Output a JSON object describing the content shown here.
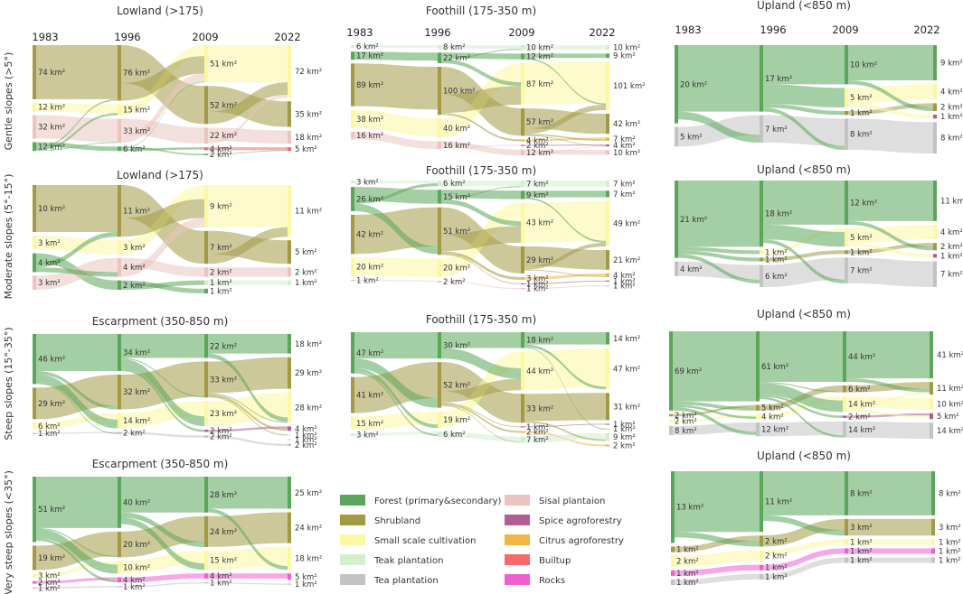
{
  "colors": {
    "forest": "#5aa65a",
    "shrub": "#a39a45",
    "small": "#fbf7a3",
    "teak": "#d2efcf",
    "tea": "#c3c3c3",
    "sisal": "#eac4bd",
    "spice": "#b35e92",
    "citrus": "#f2b646",
    "builtup": "#f36b6b",
    "rocks": "#f05ed1"
  },
  "row_labels": [
    "Gentle slopes (>5°)",
    "Moderate slopes (5°-15°)",
    "Steep slopes (15°-35°)",
    "Very steep slopes (<35°)"
  ],
  "years": [
    "1983",
    "1996",
    "2009",
    "2022"
  ],
  "legend": [
    {
      "key": "forest",
      "label": "Forest (primary&secondary)"
    },
    {
      "key": "shrub",
      "label": "Shrubland"
    },
    {
      "key": "small",
      "label": "Small scale cultivation"
    },
    {
      "key": "teak",
      "label": "Teak plantation"
    },
    {
      "key": "tea",
      "label": "Tea plantation"
    },
    {
      "key": "sisal",
      "label": "Sisal plantaion"
    },
    {
      "key": "spice",
      "label": "Spice agroforestry"
    },
    {
      "key": "citrus",
      "label": "Citrus agroforestry"
    },
    {
      "key": "builtup",
      "label": "Builtup"
    },
    {
      "key": "rocks",
      "label": "Rocks"
    }
  ],
  "chart_data": [
    {
      "type": "sankey",
      "id": "p1",
      "title": "Lowland (>175)",
      "show_years": true,
      "unit": "km²",
      "columns": [
        [
          {
            "c": "shrub",
            "v": 74
          },
          {
            "c": "small",
            "v": 12
          },
          {
            "c": "sisal",
            "v": 32
          },
          {
            "c": "forest",
            "v": 12
          }
        ],
        [
          {
            "c": "shrub",
            "v": 76
          },
          {
            "c": "small",
            "v": 15
          },
          {
            "c": "sisal",
            "v": 33
          },
          {
            "c": "forest",
            "v": 6
          }
        ],
        [
          {
            "c": "small",
            "v": 51
          },
          {
            "c": "shrub",
            "v": 52
          },
          {
            "c": "sisal",
            "v": 22
          },
          {
            "c": "builtup",
            "v": 4
          },
          {
            "c": "forest",
            "v": 2
          }
        ],
        [
          {
            "c": "small",
            "v": 72
          },
          {
            "c": "shrub",
            "v": 35
          },
          {
            "c": "sisal",
            "v": 18
          },
          {
            "c": "builtup",
            "v": 5
          }
        ]
      ]
    },
    {
      "type": "sankey",
      "id": "p2",
      "title": "Foothill (175-350 m)",
      "show_years": true,
      "unit": "km²",
      "columns": [
        [
          {
            "c": "teak",
            "v": 6
          },
          {
            "c": "forest",
            "v": 17
          },
          {
            "c": "shrub",
            "v": 89
          },
          {
            "c": "small",
            "v": 38
          },
          {
            "c": "sisal",
            "v": 16
          }
        ],
        [
          {
            "c": "teak",
            "v": 8
          },
          {
            "c": "forest",
            "v": 22
          },
          {
            "c": "shrub",
            "v": 100
          },
          {
            "c": "small",
            "v": 40
          },
          {
            "c": "sisal",
            "v": 16
          }
        ],
        [
          {
            "c": "teak",
            "v": 10
          },
          {
            "c": "forest",
            "v": 12
          },
          {
            "c": "small",
            "v": 87
          },
          {
            "c": "shrub",
            "v": 57
          },
          {
            "c": "citrus",
            "v": 4
          },
          {
            "c": "spice",
            "v": 2
          },
          {
            "c": "sisal",
            "v": 12
          }
        ],
        [
          {
            "c": "teak",
            "v": 10
          },
          {
            "c": "forest",
            "v": 9
          },
          {
            "c": "small",
            "v": 101
          },
          {
            "c": "shrub",
            "v": 42
          },
          {
            "c": "citrus",
            "v": 7
          },
          {
            "c": "spice",
            "v": 4
          },
          {
            "c": "sisal",
            "v": 10
          }
        ]
      ]
    },
    {
      "type": "sankey",
      "id": "p3",
      "title": "Upland (<850 m)",
      "show_years": true,
      "unit": "km²",
      "columns": [
        [
          {
            "c": "forest",
            "v": 20
          },
          {
            "c": "tea",
            "v": 5
          }
        ],
        [
          {
            "c": "forest",
            "v": 17
          },
          {
            "c": "tea",
            "v": 7
          }
        ],
        [
          {
            "c": "forest",
            "v": 10
          },
          {
            "c": "small",
            "v": 5
          },
          {
            "c": "shrub",
            "v": 1
          },
          {
            "c": "tea",
            "v": 8
          }
        ],
        [
          {
            "c": "forest",
            "v": 9
          },
          {
            "c": "small",
            "v": 4
          },
          {
            "c": "shrub",
            "v": 2
          },
          {
            "c": "spice",
            "v": 1
          },
          {
            "c": "tea",
            "v": 8
          }
        ]
      ]
    },
    {
      "type": "sankey",
      "id": "p4",
      "title": "Lowland (>175)",
      "show_years": false,
      "unit": "km²",
      "columns": [
        [
          {
            "c": "shrub",
            "v": 10
          },
          {
            "c": "small",
            "v": 3
          },
          {
            "c": "forest",
            "v": 4
          },
          {
            "c": "sisal",
            "v": 3
          }
        ],
        [
          {
            "c": "shrub",
            "v": 11
          },
          {
            "c": "small",
            "v": 3
          },
          {
            "c": "sisal",
            "v": 4
          },
          {
            "c": "forest",
            "v": 2
          }
        ],
        [
          {
            "c": "small",
            "v": 9
          },
          {
            "c": "shrub",
            "v": 7
          },
          {
            "c": "sisal",
            "v": 2
          },
          {
            "c": "teak",
            "v": 1
          },
          {
            "c": "forest",
            "v": 1
          }
        ],
        [
          {
            "c": "small",
            "v": 11
          },
          {
            "c": "shrub",
            "v": 5
          },
          {
            "c": "sisal",
            "v": 2
          },
          {
            "c": "teak",
            "v": 1
          }
        ]
      ]
    },
    {
      "type": "sankey",
      "id": "p5",
      "title": "Foothill (175-350 m)",
      "show_years": false,
      "unit": "km²",
      "columns": [
        [
          {
            "c": "teak",
            "v": 3
          },
          {
            "c": "forest",
            "v": 26
          },
          {
            "c": "shrub",
            "v": 42
          },
          {
            "c": "small",
            "v": 20
          },
          {
            "c": "sisal",
            "v": 1
          }
        ],
        [
          {
            "c": "teak",
            "v": 6
          },
          {
            "c": "forest",
            "v": 15
          },
          {
            "c": "shrub",
            "v": 51
          },
          {
            "c": "small",
            "v": 20
          },
          {
            "c": "sisal",
            "v": 2
          }
        ],
        [
          {
            "c": "teak",
            "v": 7
          },
          {
            "c": "forest",
            "v": 9
          },
          {
            "c": "small",
            "v": 43
          },
          {
            "c": "shrub",
            "v": 29
          },
          {
            "c": "citrus",
            "v": 3
          },
          {
            "c": "spice",
            "v": 1
          },
          {
            "c": "sisal",
            "v": 1
          }
        ],
        [
          {
            "c": "teak",
            "v": 7
          },
          {
            "c": "forest",
            "v": 7
          },
          {
            "c": "small",
            "v": 49
          },
          {
            "c": "shrub",
            "v": 21
          },
          {
            "c": "citrus",
            "v": 4
          },
          {
            "c": "spice",
            "v": 1
          },
          {
            "c": "sisal",
            "v": 1
          }
        ]
      ]
    },
    {
      "type": "sankey",
      "id": "p6",
      "title": "Upland (<850 m)",
      "show_years": false,
      "unit": "km²",
      "columns": [
        [
          {
            "c": "forest",
            "v": 21
          },
          {
            "c": "tea",
            "v": 4
          }
        ],
        [
          {
            "c": "forest",
            "v": 18
          },
          {
            "c": "small",
            "v": 1
          },
          {
            "c": "shrub",
            "v": 1
          },
          {
            "c": "tea",
            "v": 6
          }
        ],
        [
          {
            "c": "forest",
            "v": 12
          },
          {
            "c": "small",
            "v": 5
          },
          {
            "c": "shrub",
            "v": 1
          },
          {
            "c": "tea",
            "v": 7
          }
        ],
        [
          {
            "c": "forest",
            "v": 11
          },
          {
            "c": "small",
            "v": 4
          },
          {
            "c": "shrub",
            "v": 2
          },
          {
            "c": "spice",
            "v": 1
          },
          {
            "c": "tea",
            "v": 7
          }
        ]
      ]
    },
    {
      "type": "sankey",
      "id": "p7",
      "title": "Escarpment (350-850 m)",
      "show_years": false,
      "unit": "km²",
      "columns": [
        [
          {
            "c": "forest",
            "v": 46
          },
          {
            "c": "shrub",
            "v": 29
          },
          {
            "c": "small",
            "v": 6
          },
          {
            "c": "tea",
            "v": 1
          }
        ],
        [
          {
            "c": "forest",
            "v": 34
          },
          {
            "c": "shrub",
            "v": 32
          },
          {
            "c": "small",
            "v": 14
          },
          {
            "c": "tea",
            "v": 2
          }
        ],
        [
          {
            "c": "forest",
            "v": 22
          },
          {
            "c": "shrub",
            "v": 33
          },
          {
            "c": "small",
            "v": 23
          },
          {
            "c": "spice",
            "v": 2
          },
          {
            "c": "tea",
            "v": 2
          }
        ],
        [
          {
            "c": "forest",
            "v": 18
          },
          {
            "c": "shrub",
            "v": 29
          },
          {
            "c": "small",
            "v": 28
          },
          {
            "c": "spice",
            "v": 4
          },
          {
            "c": "teak",
            "v": 1
          },
          {
            "c": "sisal",
            "v": 1
          },
          {
            "c": "tea",
            "v": 2
          }
        ]
      ]
    },
    {
      "type": "sankey",
      "id": "p8",
      "title": "Foothill (175-350 m)",
      "show_years": false,
      "unit": "km²",
      "columns": [
        [
          {
            "c": "forest",
            "v": 47
          },
          {
            "c": "shrub",
            "v": 41
          },
          {
            "c": "small",
            "v": 15
          },
          {
            "c": "teak",
            "v": 3
          }
        ],
        [
          {
            "c": "forest",
            "v": 30
          },
          {
            "c": "shrub",
            "v": 52
          },
          {
            "c": "small",
            "v": 19
          },
          {
            "c": "teak",
            "v": 6
          }
        ],
        [
          {
            "c": "forest",
            "v": 18
          },
          {
            "c": "small",
            "v": 44
          },
          {
            "c": "shrub",
            "v": 33
          },
          {
            "c": "spice",
            "v": 1
          },
          {
            "c": "citrus",
            "v": 2
          },
          {
            "c": "teak",
            "v": 7
          }
        ],
        [
          {
            "c": "forest",
            "v": 14
          },
          {
            "c": "small",
            "v": 47
          },
          {
            "c": "shrub",
            "v": 31
          },
          {
            "c": "spice",
            "v": 1
          },
          {
            "c": "sisal",
            "v": 1
          },
          {
            "c": "teak",
            "v": 9
          },
          {
            "c": "citrus",
            "v": 2
          }
        ]
      ]
    },
    {
      "type": "sankey",
      "id": "p9",
      "title": "Upland (<850 m)",
      "show_years": false,
      "unit": "km²",
      "columns": [
        [
          {
            "c": "forest",
            "v": 69
          },
          {
            "c": "shrub",
            "v": 2
          },
          {
            "c": "small",
            "v": 2
          },
          {
            "c": "tea",
            "v": 8
          }
        ],
        [
          {
            "c": "forest",
            "v": 61
          },
          {
            "c": "shrub",
            "v": 5
          },
          {
            "c": "small",
            "v": 4
          },
          {
            "c": "tea",
            "v": 12
          }
        ],
        [
          {
            "c": "forest",
            "v": 44
          },
          {
            "c": "shrub",
            "v": 6
          },
          {
            "c": "small",
            "v": 14
          },
          {
            "c": "spice",
            "v": 2
          },
          {
            "c": "tea",
            "v": 14
          }
        ],
        [
          {
            "c": "forest",
            "v": 41
          },
          {
            "c": "shrub",
            "v": 11
          },
          {
            "c": "small",
            "v": 10
          },
          {
            "c": "spice",
            "v": 5
          },
          {
            "c": "tea",
            "v": 14
          }
        ]
      ]
    },
    {
      "type": "sankey",
      "id": "p10",
      "title": "Escarpment (350-850 m)",
      "show_years": false,
      "unit": "km²",
      "columns": [
        [
          {
            "c": "forest",
            "v": 51
          },
          {
            "c": "shrub",
            "v": 19
          },
          {
            "c": "small",
            "v": 3
          },
          {
            "c": "rocks",
            "v": 2
          },
          {
            "c": "tea",
            "v": 1
          }
        ],
        [
          {
            "c": "forest",
            "v": 40
          },
          {
            "c": "shrub",
            "v": 20
          },
          {
            "c": "small",
            "v": 10
          },
          {
            "c": "rocks",
            "v": 4
          },
          {
            "c": "tea",
            "v": 1
          }
        ],
        [
          {
            "c": "forest",
            "v": 28
          },
          {
            "c": "shrub",
            "v": 24
          },
          {
            "c": "small",
            "v": 15
          },
          {
            "c": "rocks",
            "v": 4
          },
          {
            "c": "tea",
            "v": 1
          }
        ],
        [
          {
            "c": "forest",
            "v": 25
          },
          {
            "c": "shrub",
            "v": 24
          },
          {
            "c": "small",
            "v": 18
          },
          {
            "c": "rocks",
            "v": 5
          },
          {
            "c": "tea",
            "v": 1
          }
        ]
      ]
    },
    {
      "type": "sankey",
      "id": "p11",
      "title": "Upland (<850 m)",
      "show_years": false,
      "unit": "km²",
      "columns": [
        [
          {
            "c": "forest",
            "v": 13
          },
          {
            "c": "shrub",
            "v": 1
          },
          {
            "c": "small",
            "v": 2
          },
          {
            "c": "rocks",
            "v": 1
          },
          {
            "c": "tea",
            "v": 1
          }
        ],
        [
          {
            "c": "forest",
            "v": 11
          },
          {
            "c": "shrub",
            "v": 2
          },
          {
            "c": "small",
            "v": 2
          },
          {
            "c": "rocks",
            "v": 1
          },
          {
            "c": "tea",
            "v": 1
          }
        ],
        [
          {
            "c": "forest",
            "v": 8
          },
          {
            "c": "shrub",
            "v": 3
          },
          {
            "c": "small",
            "v": 1
          },
          {
            "c": "rocks",
            "v": 1
          },
          {
            "c": "tea",
            "v": 1
          }
        ],
        [
          {
            "c": "forest",
            "v": 8
          },
          {
            "c": "shrub",
            "v": 3
          },
          {
            "c": "small",
            "v": 1
          },
          {
            "c": "rocks",
            "v": 1
          },
          {
            "c": "tea",
            "v": 1
          }
        ]
      ]
    }
  ]
}
